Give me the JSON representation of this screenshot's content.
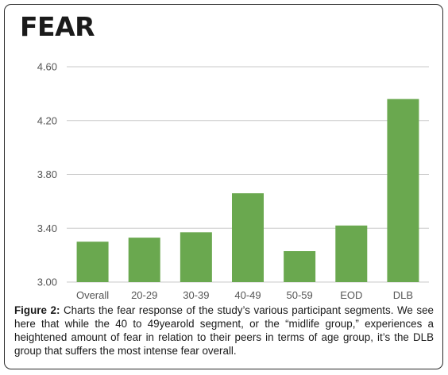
{
  "chart_data": {
    "type": "bar",
    "title": "FEAR",
    "categories": [
      "Overall",
      "20-29",
      "30-39",
      "40-49",
      "50-59",
      "EOD",
      "DLB"
    ],
    "values": [
      3.3,
      3.33,
      3.37,
      3.66,
      3.23,
      3.42,
      4.36
    ],
    "ylim": [
      3.0,
      4.6
    ],
    "yticks": [
      "3.00",
      "3.40",
      "3.80",
      "4.20",
      "4.60"
    ],
    "xlabel": "",
    "ylabel": "",
    "grid": true,
    "bar_color": "#6aa84f",
    "grid_color": "#c8c8c8"
  },
  "caption": {
    "label": "Figure 2:",
    "text": " Charts the fear response of the study’s various participant segments. We see here that while the 40 to 49yearold segment, or the “midlife group,” experiences a heightened amount of fear in relation to their peers in terms of age group, it’s the DLB group that suffers the most intense fear overall."
  }
}
